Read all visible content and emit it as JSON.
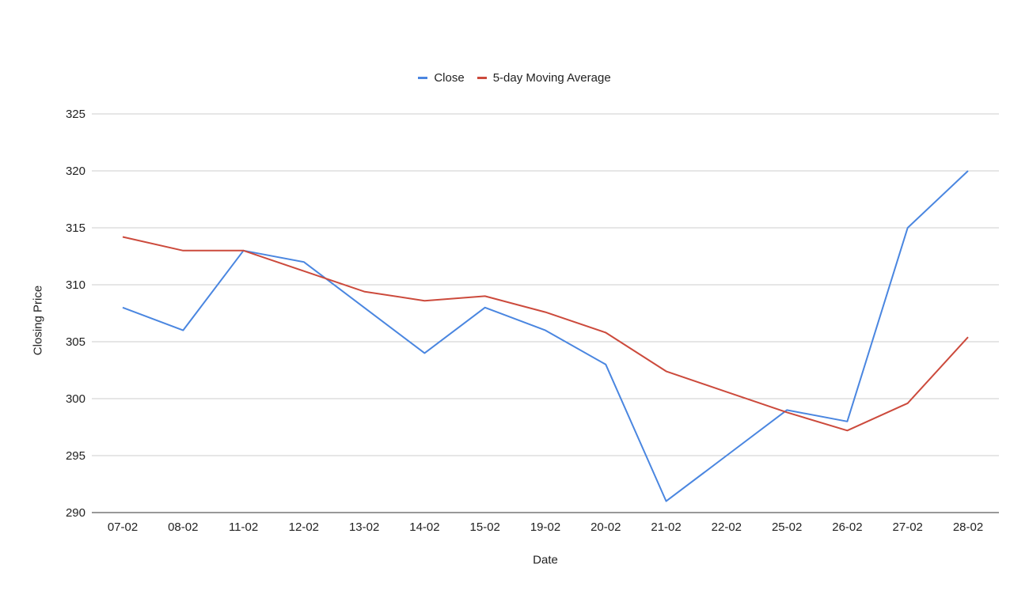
{
  "chart_data": {
    "type": "line",
    "x": [
      "07-02",
      "08-02",
      "11-02",
      "12-02",
      "13-02",
      "14-02",
      "15-02",
      "19-02",
      "20-02",
      "21-02",
      "22-02",
      "25-02",
      "26-02",
      "27-02",
      "28-02"
    ],
    "series": [
      {
        "name": "Close",
        "values": [
          308,
          306,
          313,
          312,
          308,
          304,
          308,
          306,
          303,
          291,
          295,
          299,
          298,
          315,
          320
        ],
        "color": "#4a86e0"
      },
      {
        "name": "5-day Moving Average",
        "values": [
          314.2,
          313.0,
          313.0,
          311.2,
          309.4,
          308.6,
          309.0,
          307.6,
          305.8,
          302.4,
          300.6,
          298.8,
          297.2,
          299.6,
          305.4
        ],
        "color": "#cc4a3c"
      }
    ],
    "xlabel": "Date",
    "ylabel": "Closing Price",
    "ylim": [
      290,
      325
    ],
    "yticks": [
      290,
      295,
      300,
      305,
      310,
      315,
      320,
      325
    ],
    "grid": true,
    "legend": "top-center"
  }
}
